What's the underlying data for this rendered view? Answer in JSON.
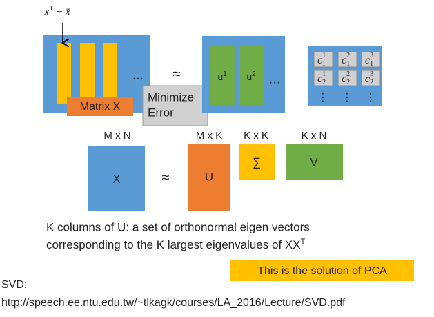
{
  "formula": {
    "x": "x",
    "sup": "1",
    "minus": "−",
    "mean": "x̄"
  },
  "top_row": {
    "ellipsis_1": "…",
    "approx": "≈",
    "matrix_x": "Matrix X",
    "minimize": [
      "Minimize",
      "Error"
    ],
    "u_vectors": [
      {
        "base": "u",
        "sup": "1"
      },
      {
        "base": "u",
        "sup": "2"
      }
    ],
    "ellipsis_2": "…",
    "coefficients": [
      [
        {
          "base": "c",
          "sub": "1",
          "sup": "1"
        },
        {
          "base": "c",
          "sub": "1",
          "sup": "2"
        },
        {
          "base": "c",
          "sub": "1",
          "sup": "3"
        }
      ],
      [
        {
          "base": "c",
          "sub": "2",
          "sup": "1"
        },
        {
          "base": "c",
          "sub": "2",
          "sup": "2"
        },
        {
          "base": "c",
          "sub": "2",
          "sup": "3"
        }
      ]
    ],
    "vdots": [
      "⋮",
      "⋮",
      "⋮"
    ]
  },
  "svd": {
    "dims": [
      "M x N",
      "M x K",
      "K x K",
      "K x N"
    ],
    "matrices": [
      "X",
      "U",
      "∑",
      "V"
    ],
    "approx": "≈"
  },
  "description": {
    "line1": "K columns of U: a set of orthonormal eigen vectors",
    "line2": {
      "text": "corresponding to the K largest eigenvalues of XX",
      "sup": "T"
    }
  },
  "highlight": "This is the solution of PCA",
  "reference": {
    "label": "SVD:",
    "url": "http://speech.ee.ntu.edu.tw/~tlkagk/courses/LA_2016/Lecture/SVD.pdf"
  }
}
